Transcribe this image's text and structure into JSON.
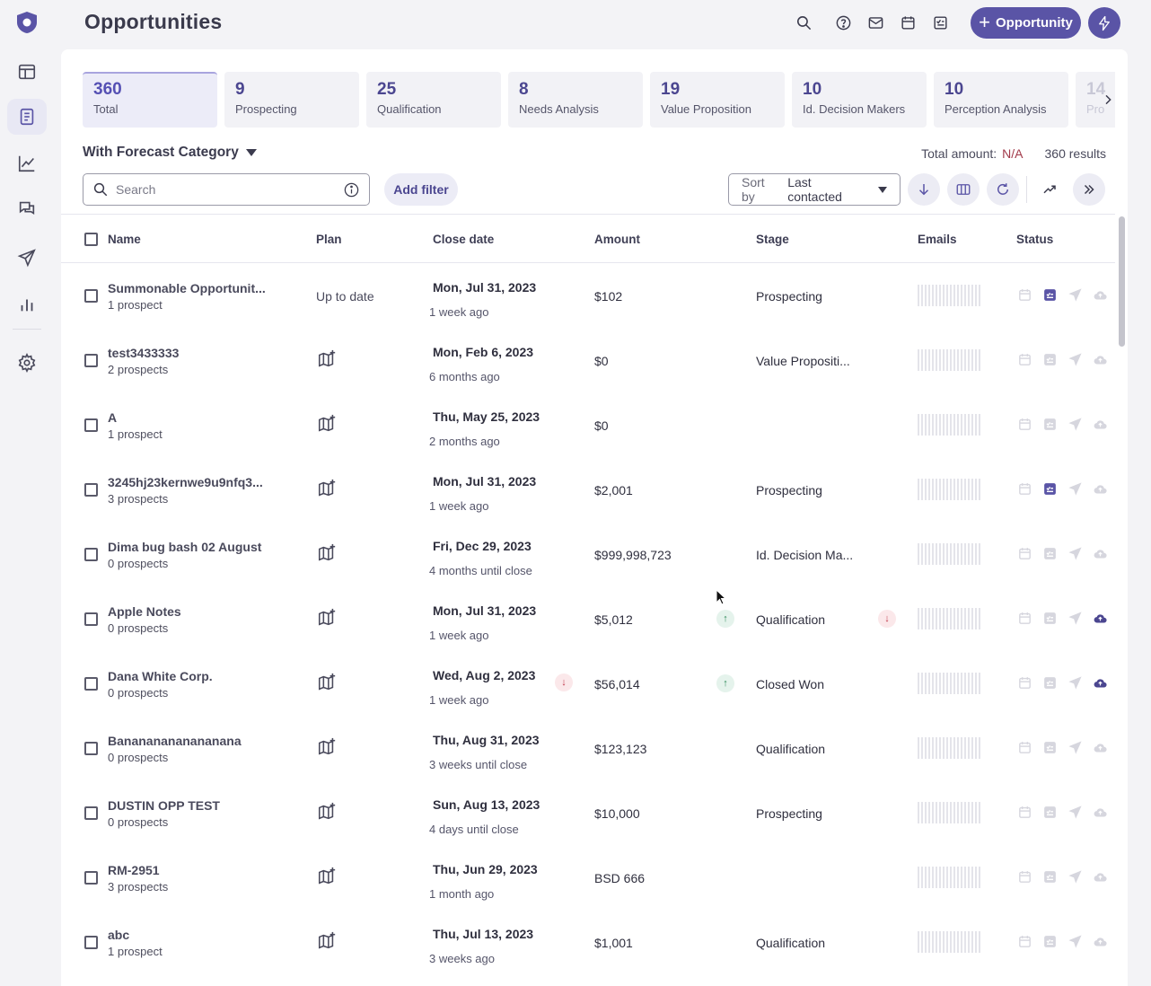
{
  "header": {
    "title": "Opportunities",
    "new_button_label": "Opportunity",
    "icons": [
      "search-icon",
      "help-icon",
      "mail-icon",
      "calendar-icon",
      "tasks-icon",
      "bolt-icon"
    ]
  },
  "sidebar": {
    "items": [
      "dashboard-icon",
      "opportunities-icon",
      "analytics-icon",
      "conversations-icon",
      "sequences-icon",
      "reports-icon",
      "settings-icon"
    ],
    "active": "opportunities-icon"
  },
  "stage_tabs": [
    {
      "count": "360",
      "label": "Total"
    },
    {
      "count": "9",
      "label": "Prospecting"
    },
    {
      "count": "25",
      "label": "Qualification"
    },
    {
      "count": "8",
      "label": "Needs Analysis"
    },
    {
      "count": "19",
      "label": "Value Proposition"
    },
    {
      "count": "10",
      "label": "Id. Decision Makers"
    },
    {
      "count": "10",
      "label": "Perception Analysis"
    },
    {
      "count": "14",
      "label": "Pro"
    }
  ],
  "forecast": {
    "label": "With Forecast Category"
  },
  "totals": {
    "amount_label": "Total amount:",
    "amount_value": "N/A",
    "results": "360 results"
  },
  "filters": {
    "search_placeholder": "Search",
    "add_filter_label": "Add filter",
    "sort_prefix": "Sort by",
    "sort_value": "Last contacted"
  },
  "table": {
    "columns": {
      "name": "Name",
      "plan": "Plan",
      "close_date": "Close date",
      "amount": "Amount",
      "stage": "Stage",
      "emails": "Emails",
      "status": "Status"
    },
    "rows": [
      {
        "name": "Summonable Opportunit...",
        "prospects": "1 prospect",
        "plan": "Up to date",
        "close_date": "Mon, Jul 31, 2023",
        "relative": "1 week ago",
        "amount": "$102",
        "stage": "Prospecting",
        "task_active": true,
        "cloud_active": false
      },
      {
        "name": "test3433333",
        "prospects": "2 prospects",
        "plan": "",
        "close_date": "Mon, Feb 6, 2023",
        "relative": "6 months ago",
        "amount": "$0",
        "stage": "Value Propositi...",
        "task_active": false,
        "cloud_active": false
      },
      {
        "name": "A",
        "prospects": "1 prospect",
        "plan": "",
        "close_date": "Thu, May 25, 2023",
        "relative": "2 months ago",
        "amount": "$0",
        "stage": "",
        "task_active": false,
        "cloud_active": false
      },
      {
        "name": "3245hj23kernwe9u9nfq3...",
        "prospects": "3 prospects",
        "plan": "",
        "close_date": "Mon, Jul 31, 2023",
        "relative": "1 week ago",
        "amount": "$2,001",
        "stage": "Prospecting",
        "task_active": true,
        "cloud_active": false
      },
      {
        "name": "Dima bug bash 02 August",
        "prospects": "0 prospects",
        "plan": "",
        "close_date": "Fri, Dec 29, 2023",
        "relative": "4 months until close",
        "amount": "$999,998,723",
        "stage": "Id. Decision Ma...",
        "task_active": false,
        "cloud_active": false
      },
      {
        "name": "Apple Notes",
        "prospects": "0 prospects",
        "plan": "",
        "close_date": "Mon, Jul 31, 2023",
        "relative": "1 week ago",
        "amount": "$5,012",
        "amount_trend": "up",
        "stage": "Qualification",
        "stage_trend": "down",
        "task_active": false,
        "cloud_active": true
      },
      {
        "name": "Dana White Corp.",
        "prospects": "0 prospects",
        "plan": "",
        "close_date": "Wed, Aug 2, 2023",
        "date_trend": "down",
        "relative": "1 week ago",
        "amount": "$56,014",
        "amount_trend": "up",
        "stage": "Closed Won",
        "task_active": false,
        "cloud_active": true
      },
      {
        "name": "Banananananananana",
        "prospects": "0 prospects",
        "plan": "",
        "close_date": "Thu, Aug 31, 2023",
        "relative": "3 weeks until close",
        "amount": "$123,123",
        "stage": "Qualification",
        "task_active": false,
        "cloud_active": false
      },
      {
        "name": "DUSTIN OPP TEST",
        "prospects": "0 prospects",
        "plan": "",
        "close_date": "Sun, Aug 13, 2023",
        "relative": "4 days until close",
        "amount": "$10,000",
        "stage": "Prospecting",
        "task_active": false,
        "cloud_active": false
      },
      {
        "name": "RM-2951",
        "prospects": "3 prospects",
        "plan": "",
        "close_date": "Thu, Jun 29, 2023",
        "relative": "1 month ago",
        "amount": "BSD 666",
        "stage": "",
        "task_active": false,
        "cloud_active": false
      },
      {
        "name": "abc",
        "prospects": "1 prospect",
        "plan": "",
        "close_date": "Thu, Jul 13, 2023",
        "relative": "3 weeks ago",
        "amount": "$1,001",
        "stage": "Qualification",
        "task_active": false,
        "cloud_active": false
      }
    ]
  },
  "colors": {
    "accent": "#5a54a6",
    "na": "#a23a4a",
    "icon_muted": "#d6d6de",
    "trend_up": "#2f8a5a",
    "trend_down": "#c0394c"
  }
}
